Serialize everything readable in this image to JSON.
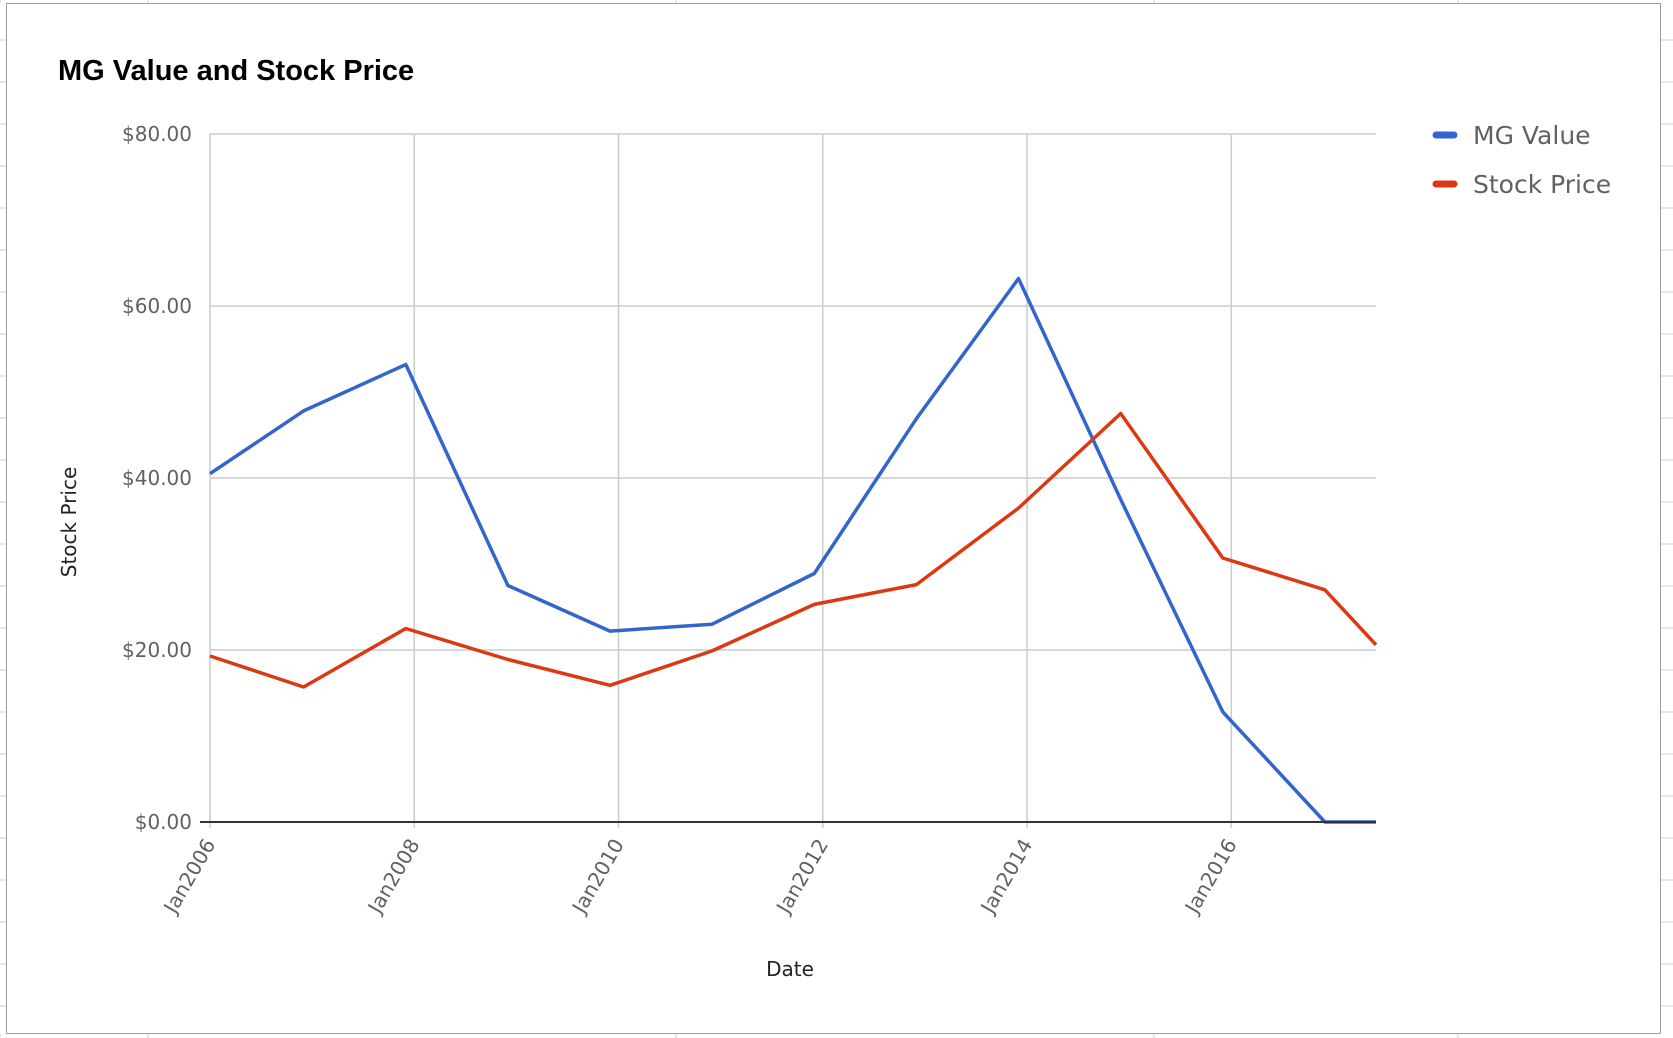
{
  "chart_data": {
    "type": "line",
    "title": "MG Value and Stock Price",
    "xlabel": "Date",
    "ylabel": "Stock Price",
    "ylim": [
      0,
      80
    ],
    "xlim": [
      "2006-01",
      "2017-06"
    ],
    "y_ticks": [
      "$0.00",
      "$20.00",
      "$40.00",
      "$60.00",
      "$80.00"
    ],
    "x_ticks": [
      "Jan2006",
      "Jan2008",
      "Jan2010",
      "Jan2012",
      "Jan2014",
      "Jan2016"
    ],
    "grid": true,
    "legend_position": "right",
    "series": [
      {
        "name": "MG Value",
        "color": "#3366cc",
        "points": [
          {
            "x": "2006-01",
            "y": 40.5
          },
          {
            "x": "2006-12",
            "y": 47.8
          },
          {
            "x": "2007-12",
            "y": 53.2
          },
          {
            "x": "2008-12",
            "y": 27.5
          },
          {
            "x": "2009-12",
            "y": 22.2
          },
          {
            "x": "2010-12",
            "y": 23.0
          },
          {
            "x": "2011-12",
            "y": 28.9
          },
          {
            "x": "2012-12",
            "y": 46.9
          },
          {
            "x": "2013-12",
            "y": 63.2
          },
          {
            "x": "2014-12",
            "y": 37.5
          },
          {
            "x": "2015-12",
            "y": 12.8
          },
          {
            "x": "2016-12",
            "y": 0.0
          },
          {
            "x": "2017-06",
            "y": 0.0
          }
        ]
      },
      {
        "name": "Stock Price",
        "color": "#dc3912",
        "points": [
          {
            "x": "2006-01",
            "y": 19.3
          },
          {
            "x": "2006-12",
            "y": 15.7
          },
          {
            "x": "2007-12",
            "y": 22.5
          },
          {
            "x": "2008-12",
            "y": 18.9
          },
          {
            "x": "2009-12",
            "y": 15.9
          },
          {
            "x": "2010-12",
            "y": 19.9
          },
          {
            "x": "2011-12",
            "y": 25.3
          },
          {
            "x": "2012-12",
            "y": 27.6
          },
          {
            "x": "2013-12",
            "y": 36.5
          },
          {
            "x": "2014-12",
            "y": 47.5
          },
          {
            "x": "2015-12",
            "y": 30.7
          },
          {
            "x": "2016-12",
            "y": 27.0
          },
          {
            "x": "2017-06",
            "y": 20.6
          }
        ]
      }
    ]
  }
}
